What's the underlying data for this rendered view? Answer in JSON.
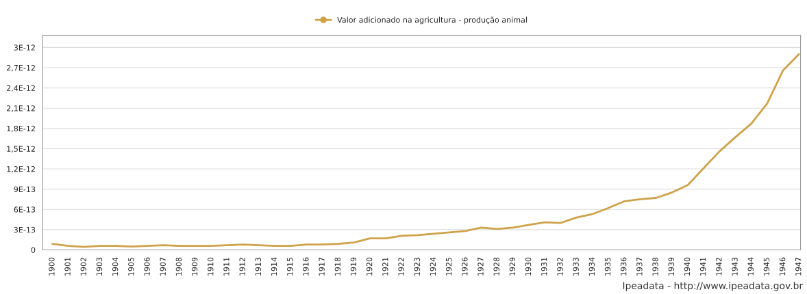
{
  "chart_data": {
    "type": "line",
    "categories": [
      "1900",
      "1901",
      "1902",
      "1903",
      "1904",
      "1905",
      "1906",
      "1907",
      "1908",
      "1909",
      "1910",
      "1911",
      "1912",
      "1913",
      "1914",
      "1915",
      "1916",
      "1917",
      "1918",
      "1919",
      "1920",
      "1921",
      "1922",
      "1923",
      "1924",
      "1925",
      "1926",
      "1927",
      "1928",
      "1929",
      "1930",
      "1931",
      "1932",
      "1933",
      "1934",
      "1935",
      "1936",
      "1937",
      "1938",
      "1939",
      "1940",
      "1941",
      "1942",
      "1943",
      "1944",
      "1945",
      "1946",
      "1947"
    ],
    "series": [
      {
        "name": "Valor adicionado na agricultura - produção animal",
        "color": "#cfa24a",
        "values": [
          9e-14,
          6e-14,
          4.5e-14,
          6e-14,
          6e-14,
          5e-14,
          6e-14,
          7e-14,
          6e-14,
          6e-14,
          6e-14,
          7e-14,
          8e-14,
          7e-14,
          6e-14,
          6e-14,
          8e-14,
          8e-14,
          9e-14,
          1.1e-13,
          1.7e-13,
          1.7e-13,
          2.1e-13,
          2.2e-13,
          2.4e-13,
          2.6e-13,
          2.8e-13,
          3.3e-13,
          3.1e-13,
          3.3e-13,
          3.7e-13,
          4.1e-13,
          4e-13,
          4.8e-13,
          5.3e-13,
          6.2e-13,
          7.2e-13,
          7.5e-13,
          7.7e-13,
          8.5e-13,
          9.6e-13,
          1.21e-12,
          1.46e-12,
          1.67e-12,
          1.87e-12,
          2.17e-12,
          2.66e-12,
          2.9e-12
        ]
      }
    ],
    "ylim": [
      0,
      3.18e-12
    ],
    "yticks": [
      0,
      {
        "value": 3e-13,
        "label": "3E-13"
      },
      {
        "value": 6e-13,
        "label": "6E-13"
      },
      {
        "value": 9e-13,
        "label": "9E-13"
      },
      {
        "value": 1.2e-12,
        "label": "1,2E-12"
      },
      {
        "value": 1.5e-12,
        "label": "1,5E-12"
      },
      {
        "value": 1.8e-12,
        "label": "1,8E-12"
      },
      {
        "value": 2.1e-12,
        "label": "2,1E-12"
      },
      {
        "value": 2.4e-12,
        "label": "2,4E-12"
      },
      {
        "value": 2.7e-12,
        "label": "2,7E-12"
      },
      {
        "value": 3e-12,
        "label": "3E-12"
      }
    ],
    "grid": "y",
    "legend": "top",
    "line_style": "solid",
    "annotations": [
      "Ipeadata - http://www.ipeadata.gov.br"
    ]
  }
}
